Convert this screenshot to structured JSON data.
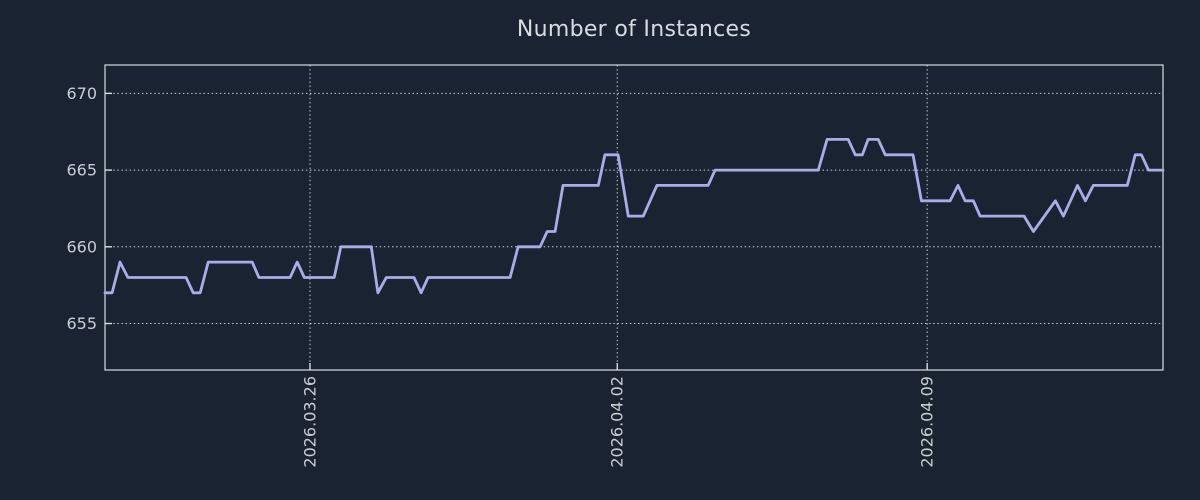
{
  "colors": {
    "background": "#1a2332",
    "axis_border": "#d9dde1",
    "grid": "#c7ccd1",
    "tick_label": "#c9ced3",
    "title": "#d8dcdf",
    "line": "#a8ade8"
  },
  "chart_data": {
    "type": "line",
    "title": "Number of Instances",
    "xlabel": "",
    "ylabel": "",
    "legend": "none",
    "grid": "dotted, both axes",
    "x_axis": {
      "unit": "days-from-first-sample",
      "range": [
        0,
        24
      ],
      "ticks": [
        {
          "pos": 4.65,
          "label": "2026.03.26"
        },
        {
          "pos": 11.62,
          "label": "2026.04.02"
        },
        {
          "pos": 18.65,
          "label": "2026.04.09"
        }
      ]
    },
    "y_axis": {
      "range": [
        651.97,
        671.85
      ],
      "ticks": [
        {
          "pos": 655,
          "label": "655"
        },
        {
          "pos": 660,
          "label": "660"
        },
        {
          "pos": 665,
          "label": "665"
        },
        {
          "pos": 670,
          "label": "670"
        }
      ]
    },
    "series": [
      {
        "name": "instances",
        "color": "#a8ade8",
        "points": [
          [
            0.0,
            657
          ],
          [
            0.16,
            657
          ],
          [
            0.34,
            659
          ],
          [
            0.52,
            658
          ],
          [
            1.84,
            658
          ],
          [
            2.0,
            657
          ],
          [
            2.16,
            657
          ],
          [
            2.34,
            659
          ],
          [
            3.34,
            659
          ],
          [
            3.49,
            658
          ],
          [
            4.2,
            658
          ],
          [
            4.36,
            659
          ],
          [
            4.52,
            658
          ],
          [
            5.2,
            658
          ],
          [
            5.35,
            660
          ],
          [
            6.04,
            660
          ],
          [
            6.19,
            657
          ],
          [
            6.38,
            658
          ],
          [
            7.01,
            658
          ],
          [
            7.17,
            657
          ],
          [
            7.33,
            658
          ],
          [
            9.19,
            658
          ],
          [
            9.37,
            660
          ],
          [
            9.87,
            660
          ],
          [
            10.03,
            661
          ],
          [
            10.21,
            661
          ],
          [
            10.39,
            664
          ],
          [
            11.19,
            664
          ],
          [
            11.34,
            666
          ],
          [
            11.64,
            666
          ],
          [
            11.87,
            662
          ],
          [
            12.21,
            662
          ],
          [
            12.52,
            664
          ],
          [
            13.68,
            664
          ],
          [
            13.84,
            665
          ],
          [
            16.18,
            665
          ],
          [
            16.38,
            667
          ],
          [
            16.86,
            667
          ],
          [
            17.02,
            666
          ],
          [
            17.18,
            666
          ],
          [
            17.31,
            667
          ],
          [
            17.54,
            667
          ],
          [
            17.7,
            666
          ],
          [
            18.33,
            666
          ],
          [
            18.52,
            663
          ],
          [
            19.17,
            663
          ],
          [
            19.35,
            664
          ],
          [
            19.51,
            663
          ],
          [
            19.7,
            663
          ],
          [
            19.85,
            662
          ],
          [
            20.85,
            662
          ],
          [
            21.06,
            661
          ],
          [
            21.56,
            663
          ],
          [
            21.74,
            662
          ],
          [
            22.06,
            664
          ],
          [
            22.24,
            663
          ],
          [
            22.42,
            664
          ],
          [
            23.19,
            664
          ],
          [
            23.37,
            666
          ],
          [
            23.51,
            666
          ],
          [
            23.67,
            665
          ],
          [
            24.0,
            665
          ]
        ]
      }
    ]
  }
}
